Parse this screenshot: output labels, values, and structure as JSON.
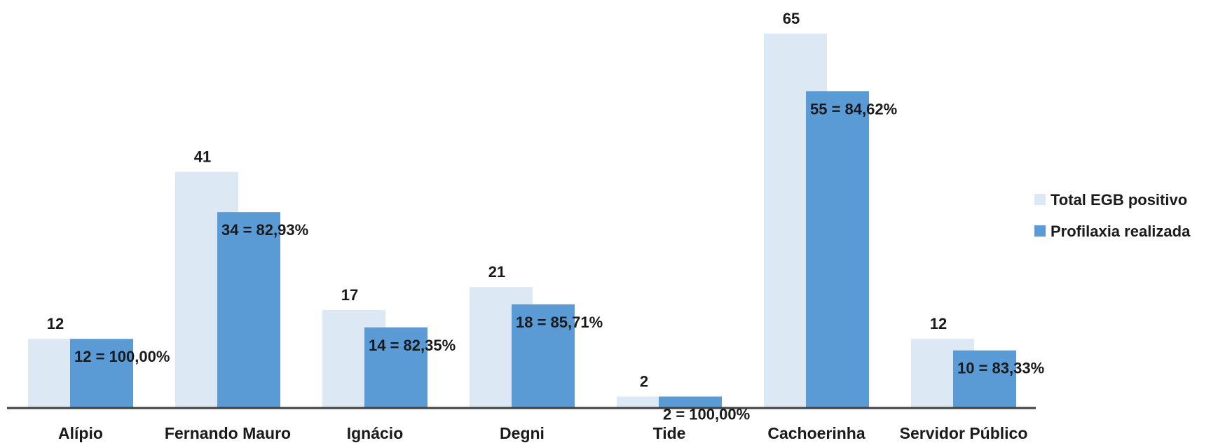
{
  "chart_data": {
    "type": "bar",
    "title": "",
    "xlabel": "",
    "ylabel": "",
    "categories": [
      "Alípio",
      "Fernando Mauro",
      "Ignácio",
      "Degni",
      "Tide",
      "Cachoerinha",
      "Servidor Público"
    ],
    "series": [
      {
        "name": "Total EGB positivo",
        "color": "#dde8f5",
        "values": [
          12,
          41,
          17,
          21,
          2,
          65,
          12
        ],
        "labels": [
          "12",
          "41",
          "17",
          "21",
          "2",
          "65",
          "12"
        ]
      },
      {
        "name": "Profilaxia realizada",
        "color": "#5b9bd5",
        "values": [
          12,
          34,
          14,
          18,
          2,
          55,
          10
        ],
        "labels": [
          "12 = 100,00%",
          "34 = 82,93%",
          "14 = 82,35%",
          "18 = 85,71%",
          "2 = 100,00%",
          "55 = 84,62%",
          "10 = 83,33%"
        ]
      }
    ],
    "ylim": [
      0,
      65
    ],
    "grid": false,
    "legend": "right"
  }
}
